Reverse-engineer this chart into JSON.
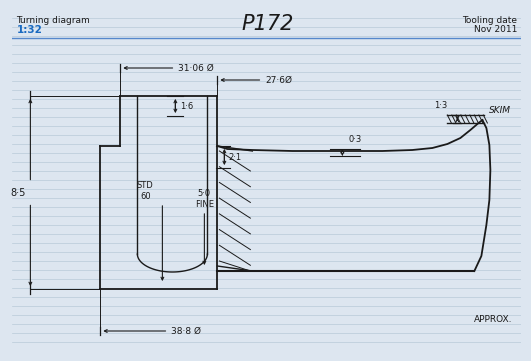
{
  "title": "P172",
  "subtitle_left": "Turning diagram",
  "scale": "1:32",
  "tooling_date_label": "Tooling date",
  "tooling_date_value": "Nov 2011",
  "bg_color": "#dde6f0",
  "line_color": "#1a1a1a",
  "scale_color": "#1a6ac0",
  "ruled_line_color": "#b8cad8",
  "approx_text": "APPROX.",
  "dims": {
    "diam_31_06": "31·06 Ø",
    "diam_27_6": "27·6Ø",
    "diam_38_8": "38·8 Ø",
    "dim_1_6": "1·6",
    "dim_2_1": "2·1",
    "dim_0_3": "0·3",
    "dim_1_3": "1·3",
    "dim_8_5": "8·5",
    "std_60": "STD\n60",
    "dim_5_0_fine": "5·0\nFINE",
    "skim": "SKIM"
  }
}
